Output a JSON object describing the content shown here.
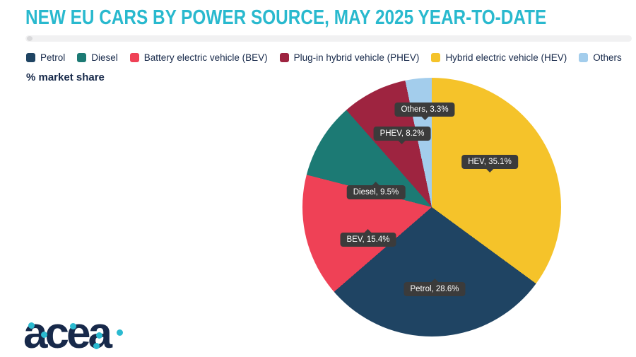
{
  "title": "NEW EU CARS BY POWER SOURCE, MAY 2025 YEAR-TO-DATE",
  "unit_label": "% market share",
  "logo_text": "acea",
  "colors": {
    "title": "#29B9CE",
    "text": "#17294A",
    "callout_bg": "#3B3B3B",
    "callout_text": "#FFFFFF",
    "divider": "#F1F1F2",
    "background": "#FFFFFF",
    "logo": "#17294A",
    "logo_dot": "#2BBAD0"
  },
  "chart_data": {
    "type": "pie",
    "title": "NEW EU CARS BY POWER SOURCE, MAY 2025 YEAR-TO-DATE",
    "unit": "% market share",
    "slices": [
      {
        "name": "Petrol",
        "legend_label": "Petrol",
        "value": 28.6,
        "color": "#1F4463",
        "callout": "Petrol, 28.6%"
      },
      {
        "name": "Diesel",
        "legend_label": "Diesel",
        "value": 9.5,
        "color": "#1C7A74",
        "callout": "Diesel, 9.5%"
      },
      {
        "name": "BEV",
        "legend_label": "Battery electric vehicle (BEV)",
        "value": 15.4,
        "color": "#EF4156",
        "callout": "BEV, 15.4%"
      },
      {
        "name": "PHEV",
        "legend_label": "Plug-in hybrid vehicle (PHEV)",
        "value": 8.2,
        "color": "#9E2440",
        "callout": "PHEV, 8.2%"
      },
      {
        "name": "HEV",
        "legend_label": "Hybrid electric vehicle (HEV)",
        "value": 35.1,
        "color": "#F5C32A",
        "callout": "HEV, 35.1%"
      },
      {
        "name": "Others",
        "legend_label": "Others",
        "value": 3.3,
        "color": "#A3CDEC",
        "callout": "Others, 3.3%"
      }
    ],
    "draw_order_clockwise_from_top": [
      "HEV",
      "Petrol",
      "BEV",
      "Diesel",
      "PHEV",
      "Others"
    ],
    "legend_position": "top-left",
    "labels_inside": true
  }
}
